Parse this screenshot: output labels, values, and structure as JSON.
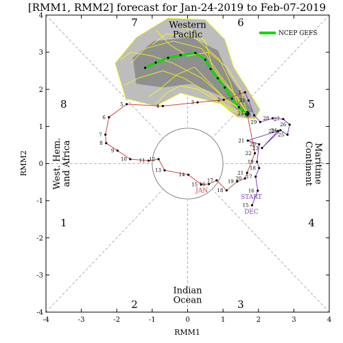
{
  "chart_data": {
    "type": "line",
    "title": "[RMM1, RMM2] forecast for Jan-24-2019 to Feb-07-2019",
    "xlabel": "RMM1",
    "ylabel": "RMM2",
    "xlim": [
      -4,
      4
    ],
    "ylim": [
      -4,
      4
    ],
    "x_ticks": [
      -4,
      -3,
      -2,
      -1,
      0,
      1,
      2,
      3,
      4
    ],
    "y_ticks": [
      -4,
      -3,
      -2,
      -1,
      0,
      1,
      2,
      3,
      4
    ],
    "grid": false,
    "legend": {
      "position": "top-right",
      "entries": [
        "NCEP GEFS"
      ]
    },
    "colors": {
      "dec": "#7f3fbf",
      "jan": "#d04040",
      "forecast_mean": "#00dd00",
      "members": "#ffff00",
      "spread_outer": "#bdbdbd",
      "spread_inner": "#8f8f8f",
      "circle": "#606060"
    },
    "phases": [
      {
        "label": "1",
        "x": -3.5,
        "y": -1.6
      },
      {
        "label": "2",
        "x": -1.5,
        "y": -3.8
      },
      {
        "label": "3",
        "x": 1.5,
        "y": -3.8
      },
      {
        "label": "4",
        "x": 3.5,
        "y": -1.6
      },
      {
        "label": "5",
        "x": 3.5,
        "y": 1.6
      },
      {
        "label": "6",
        "x": 1.5,
        "y": 3.8
      },
      {
        "label": "7",
        "x": -1.5,
        "y": 3.8
      },
      {
        "label": "8",
        "x": -3.5,
        "y": 1.6
      }
    ],
    "regions": [
      {
        "lines": [
          "Western",
          "Pacific"
        ],
        "x": 0,
        "y": 3.6,
        "orient": "h"
      },
      {
        "lines": [
          "Indian",
          "Ocean"
        ],
        "x": 0,
        "y": -3.55,
        "orient": "h"
      },
      {
        "lines": [
          "West. Hem.",
          "and Africa"
        ],
        "x": -3.55,
        "y": 0,
        "orient": "ccw"
      },
      {
        "lines": [
          "Maritime",
          "Continent"
        ],
        "x": 3.55,
        "y": 0,
        "orient": "cw"
      }
    ],
    "month_labels": [
      {
        "text": "START",
        "x": 1.8,
        "y": -0.95,
        "color": "#7f3fbf"
      },
      {
        "text": "DEC",
        "x": 1.8,
        "y": -1.35,
        "color": "#7f3fbf"
      },
      {
        "text": "JAN",
        "x": 0.4,
        "y": -0.78,
        "color": "#d04040"
      }
    ],
    "series": [
      {
        "name": "DEC",
        "points": [
          {
            "day": "15",
            "x": 1.82,
            "y": -1.12
          },
          {
            "day": "16",
            "x": 1.98,
            "y": -0.73
          },
          {
            "day": "17",
            "x": 1.92,
            "y": -0.35
          },
          {
            "day": "18",
            "x": 2.02,
            "y": -0.12
          },
          {
            "day": "19",
            "x": 1.96,
            "y": 0.05
          },
          {
            "day": "20",
            "x": 2.02,
            "y": 0.52
          },
          {
            "day": "21",
            "x": 1.7,
            "y": 0.62
          },
          {
            "day": "22",
            "x": 2.55,
            "y": 0.88
          },
          {
            "day": "23",
            "x": 2.1,
            "y": 0.42
          },
          {
            "day": "24",
            "x": 2.62,
            "y": 0.9
          },
          {
            "day": "25",
            "x": 2.82,
            "y": 0.78
          },
          {
            "day": "26",
            "x": 2.88,
            "y": 1.05
          },
          {
            "day": "27",
            "x": 2.7,
            "y": 1.2
          },
          {
            "day": "28",
            "x": 2.4,
            "y": 1.22
          },
          {
            "day": "29",
            "x": 2.05,
            "y": 1.12
          },
          {
            "day": "30",
            "x": 1.88,
            "y": 1.3
          },
          {
            "day": "31",
            "x": 1.72,
            "y": 1.7
          }
        ]
      },
      {
        "name": "JAN",
        "points": [
          {
            "day": "1",
            "x": 1.62,
            "y": 1.92
          },
          {
            "day": "2",
            "x": 1.02,
            "y": 1.72
          },
          {
            "day": "3",
            "x": 0.28,
            "y": 1.65
          },
          {
            "day": "4",
            "x": -0.7,
            "y": 1.55
          },
          {
            "day": "5",
            "x": -1.72,
            "y": 1.6
          },
          {
            "day": "6",
            "x": -2.22,
            "y": 1.25
          },
          {
            "day": "7",
            "x": -2.32,
            "y": 0.78
          },
          {
            "day": "8",
            "x": -2.3,
            "y": 0.55
          },
          {
            "day": "9",
            "x": -1.98,
            "y": 0.35
          },
          {
            "day": "10",
            "x": -1.62,
            "y": 0.12
          },
          {
            "day": "11",
            "x": -1.1,
            "y": 0.08
          },
          {
            "day": "12",
            "x": -0.82,
            "y": 0.12
          },
          {
            "day": "13",
            "x": -0.65,
            "y": -0.18
          },
          {
            "day": "14",
            "x": 0.02,
            "y": -0.3
          },
          {
            "day": "15",
            "x": 0.38,
            "y": -0.56
          },
          {
            "day": "16",
            "x": 0.6,
            "y": -0.55
          },
          {
            "day": "17",
            "x": 0.82,
            "y": -0.45
          },
          {
            "day": "18",
            "x": 1.1,
            "y": -0.72
          },
          {
            "day": "19",
            "x": 1.4,
            "y": -0.48
          },
          {
            "day": "20",
            "x": 1.62,
            "y": -0.4
          },
          {
            "day": "21",
            "x": 1.68,
            "y": -0.25
          },
          {
            "day": "22",
            "x": 1.9,
            "y": 0.28
          },
          {
            "day": "23",
            "x": 1.68,
            "y": 1.35
          }
        ]
      }
    ],
    "forecast_mean": [
      {
        "x": 1.68,
        "y": 1.35
      },
      {
        "x": 1.45,
        "y": 1.52
      },
      {
        "x": 1.25,
        "y": 1.75
      },
      {
        "x": 1.05,
        "y": 2.05
      },
      {
        "x": 0.85,
        "y": 2.3
      },
      {
        "x": 0.65,
        "y": 2.55
      },
      {
        "x": 0.5,
        "y": 2.8
      },
      {
        "x": 0.22,
        "y": 2.98
      },
      {
        "x": -0.2,
        "y": 2.92
      },
      {
        "x": -0.55,
        "y": 2.85
      },
      {
        "x": -0.9,
        "y": 2.72
      },
      {
        "x": -1.2,
        "y": 2.58
      }
    ],
    "ensemble_members": [
      [
        {
          "x": 1.68,
          "y": 1.35
        },
        {
          "x": 1.3,
          "y": 1.9
        },
        {
          "x": 0.9,
          "y": 2.4
        },
        {
          "x": 0.4,
          "y": 3.1
        },
        {
          "x": -0.4,
          "y": 3.3
        },
        {
          "x": -1.2,
          "y": 3.1
        },
        {
          "x": -1.6,
          "y": 2.7
        }
      ],
      [
        {
          "x": 1.68,
          "y": 1.35
        },
        {
          "x": 1.1,
          "y": 1.7
        },
        {
          "x": 0.7,
          "y": 2.1
        },
        {
          "x": 0.2,
          "y": 2.6
        },
        {
          "x": -0.3,
          "y": 2.4
        },
        {
          "x": -0.8,
          "y": 2.0
        },
        {
          "x": -1.1,
          "y": 1.8
        }
      ],
      [
        {
          "x": 1.68,
          "y": 1.35
        },
        {
          "x": 1.4,
          "y": 1.6
        },
        {
          "x": 1.2,
          "y": 2.2
        },
        {
          "x": 0.9,
          "y": 2.8
        },
        {
          "x": 0.2,
          "y": 3.4
        },
        {
          "x": -0.6,
          "y": 3.5
        },
        {
          "x": -1.0,
          "y": 3.2
        }
      ],
      [
        {
          "x": 1.68,
          "y": 1.35
        },
        {
          "x": 1.2,
          "y": 1.5
        },
        {
          "x": 0.6,
          "y": 1.9
        },
        {
          "x": -0.1,
          "y": 2.3
        },
        {
          "x": -0.7,
          "y": 2.5
        },
        {
          "x": -1.4,
          "y": 2.3
        },
        {
          "x": -1.8,
          "y": 2.1
        }
      ],
      [
        {
          "x": 1.68,
          "y": 1.35
        },
        {
          "x": 1.5,
          "y": 2.0
        },
        {
          "x": 1.1,
          "y": 2.6
        },
        {
          "x": 0.6,
          "y": 3.0
        },
        {
          "x": 0.0,
          "y": 2.9
        },
        {
          "x": -0.5,
          "y": 3.2
        },
        {
          "x": -0.9,
          "y": 3.6
        }
      ],
      [
        {
          "x": 1.68,
          "y": 1.35
        },
        {
          "x": 1.0,
          "y": 1.8
        },
        {
          "x": 0.4,
          "y": 2.3
        },
        {
          "x": -0.4,
          "y": 2.7
        },
        {
          "x": -1.0,
          "y": 2.9
        },
        {
          "x": -1.6,
          "y": 3.0
        },
        {
          "x": -1.9,
          "y": 2.8
        }
      ],
      [
        {
          "x": 1.68,
          "y": 1.35
        },
        {
          "x": 1.3,
          "y": 1.4
        },
        {
          "x": 0.8,
          "y": 1.7
        },
        {
          "x": 0.3,
          "y": 2.0
        },
        {
          "x": -0.2,
          "y": 2.1
        },
        {
          "x": -0.6,
          "y": 1.9
        },
        {
          "x": -0.9,
          "y": 1.6
        }
      ],
      [
        {
          "x": 1.68,
          "y": 1.35
        },
        {
          "x": 1.4,
          "y": 1.8
        },
        {
          "x": 1.0,
          "y": 2.2
        },
        {
          "x": 0.7,
          "y": 2.6
        },
        {
          "x": 0.5,
          "y": 3.3
        },
        {
          "x": 0.1,
          "y": 3.6
        },
        {
          "x": -0.3,
          "y": 3.7
        }
      ]
    ],
    "spread_outer": [
      {
        "x": 1.4,
        "y": 1.25
      },
      {
        "x": 0.95,
        "y": 1.6
      },
      {
        "x": -0.2,
        "y": 1.9
      },
      {
        "x": -0.9,
        "y": 1.55
      },
      {
        "x": -1.75,
        "y": 1.75
      },
      {
        "x": -2.05,
        "y": 2.7
      },
      {
        "x": -1.45,
        "y": 3.4
      },
      {
        "x": -0.55,
        "y": 3.92
      },
      {
        "x": 0.5,
        "y": 3.88
      },
      {
        "x": 1.05,
        "y": 3.35
      },
      {
        "x": 1.3,
        "y": 2.6
      },
      {
        "x": 1.7,
        "y": 2.0
      },
      {
        "x": 2.05,
        "y": 1.45
      },
      {
        "x": 1.9,
        "y": 1.2
      }
    ],
    "spread_inner": [
      {
        "x": 1.55,
        "y": 1.32
      },
      {
        "x": 1.0,
        "y": 1.8
      },
      {
        "x": 0.1,
        "y": 2.15
      },
      {
        "x": -0.7,
        "y": 2.05
      },
      {
        "x": -1.45,
        "y": 2.15
      },
      {
        "x": -1.55,
        "y": 2.85
      },
      {
        "x": -0.95,
        "y": 3.3
      },
      {
        "x": 0.1,
        "y": 3.4
      },
      {
        "x": 0.85,
        "y": 3.05
      },
      {
        "x": 1.15,
        "y": 2.4
      },
      {
        "x": 1.55,
        "y": 1.85
      },
      {
        "x": 1.85,
        "y": 1.4
      }
    ]
  }
}
